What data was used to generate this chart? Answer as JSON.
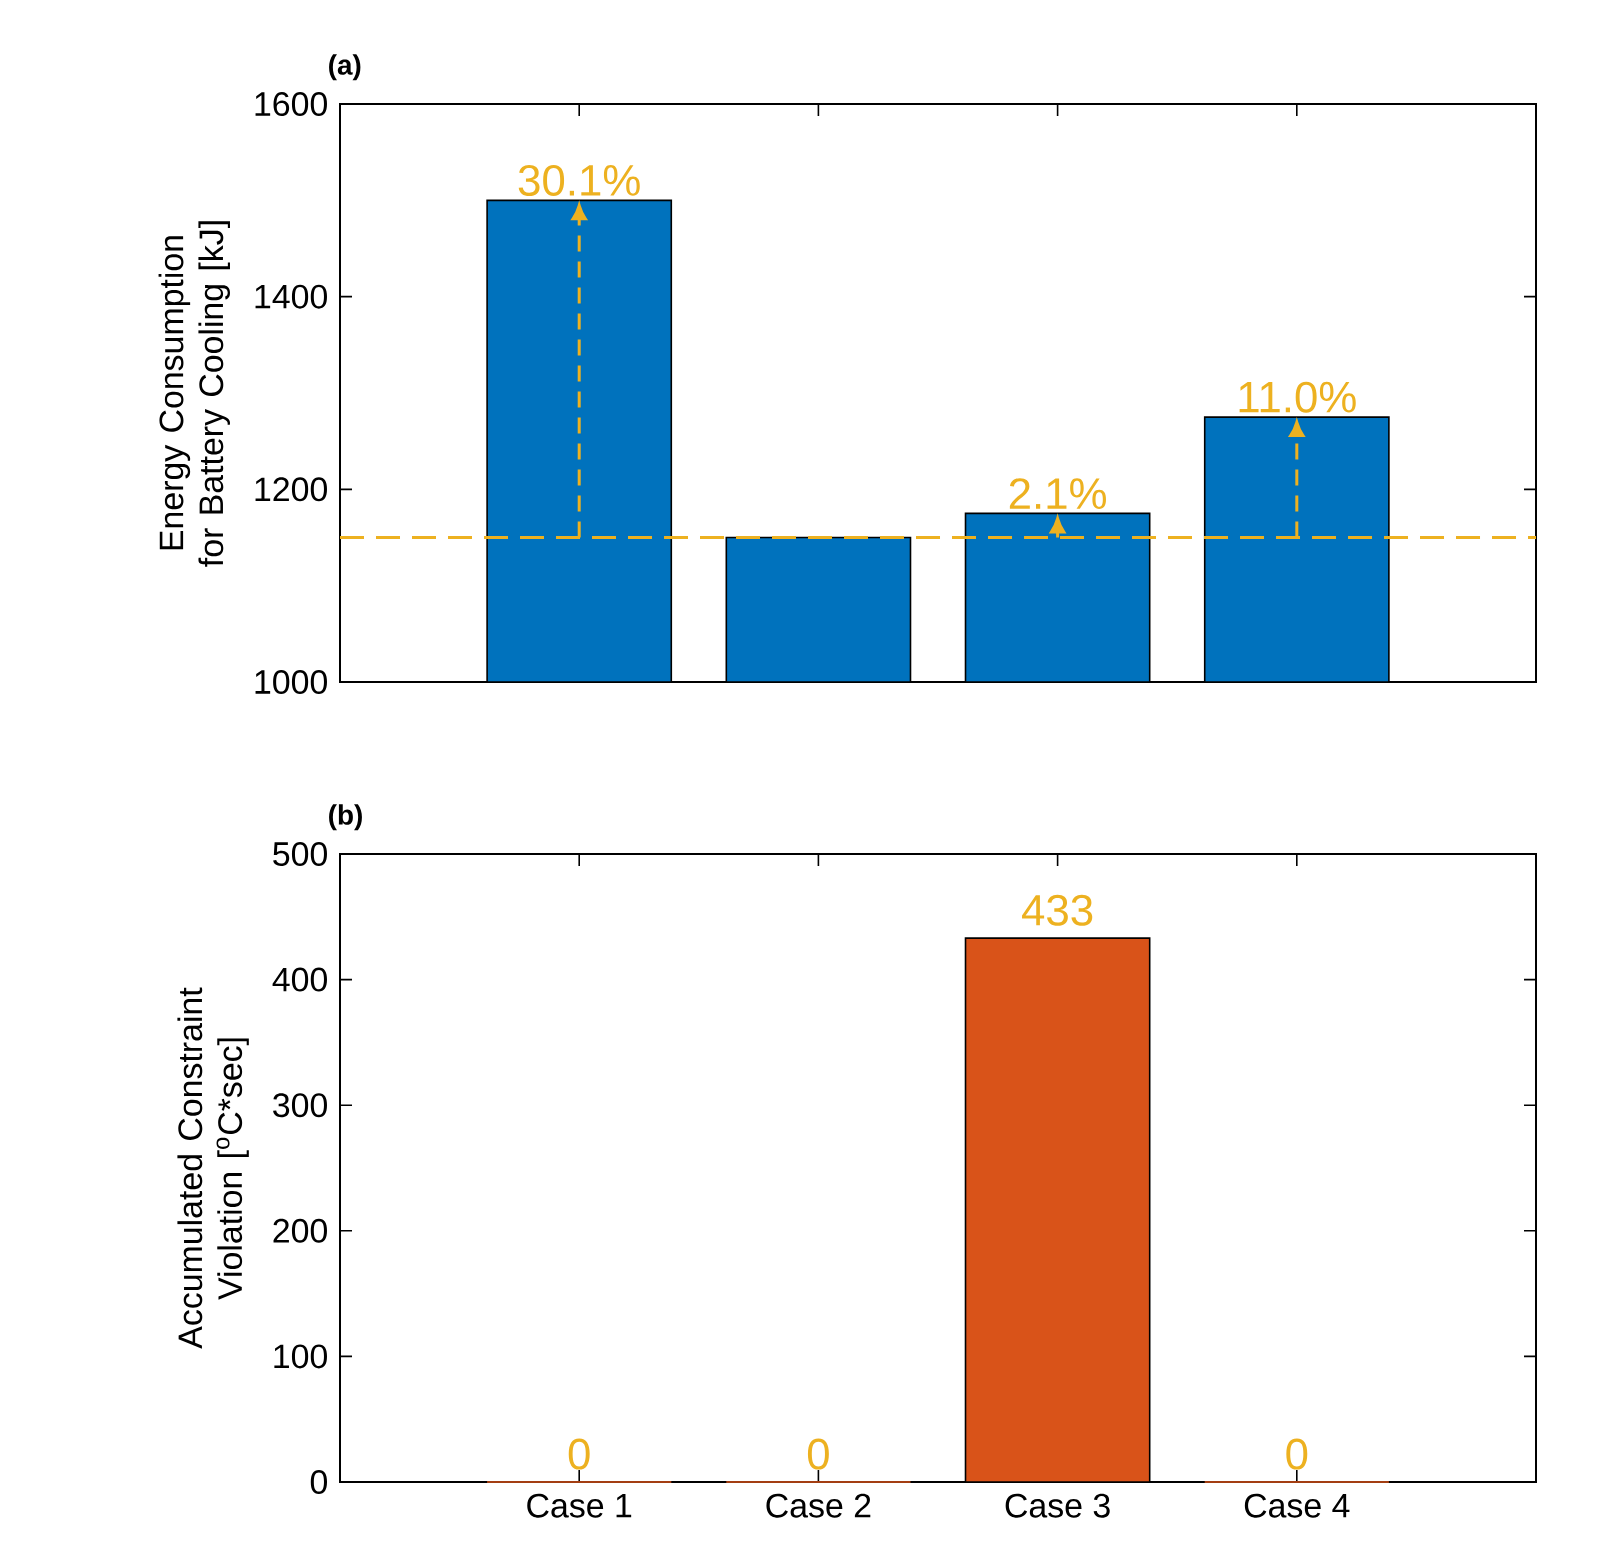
{
  "chart_data": [
    {
      "type": "bar",
      "title": "(a)",
      "ylabel": "Energy Consumption for Battery Cooling [kJ]",
      "categories": [
        "Case 1",
        "Case 2",
        "Case 3",
        "Case 4"
      ],
      "values": [
        1500,
        1150,
        1175,
        1275
      ],
      "color": "#0072bd",
      "ylim": [
        1000,
        1600
      ],
      "yticks": [
        1000,
        1200,
        1400,
        1600
      ],
      "tick_labels": "y",
      "ref_lines": [
        {
          "axis": "y",
          "value": 1150,
          "color": "#edb120",
          "line_style": "dashed"
        }
      ],
      "annotations": [
        {
          "text": "30.1%",
          "x": "Case 1",
          "y": 1500
        },
        {
          "text": "2.1%",
          "x": "Case 3",
          "y": 1175
        },
        {
          "text": "11.0%",
          "x": "Case 4",
          "y": 1275
        }
      ]
    },
    {
      "type": "bar",
      "title": "(b)",
      "ylabel": "Accumulated Constraint Violation [$^{o}$C*sec]",
      "categories": [
        "Case 1",
        "Case 2",
        "Case 3",
        "Case 4"
      ],
      "values": [
        0,
        0,
        433,
        0
      ],
      "color": "#d95319",
      "ylim": [
        0,
        500
      ],
      "yticks": [
        0,
        100,
        200,
        300,
        400,
        500
      ],
      "data_labels": true
    }
  ]
}
